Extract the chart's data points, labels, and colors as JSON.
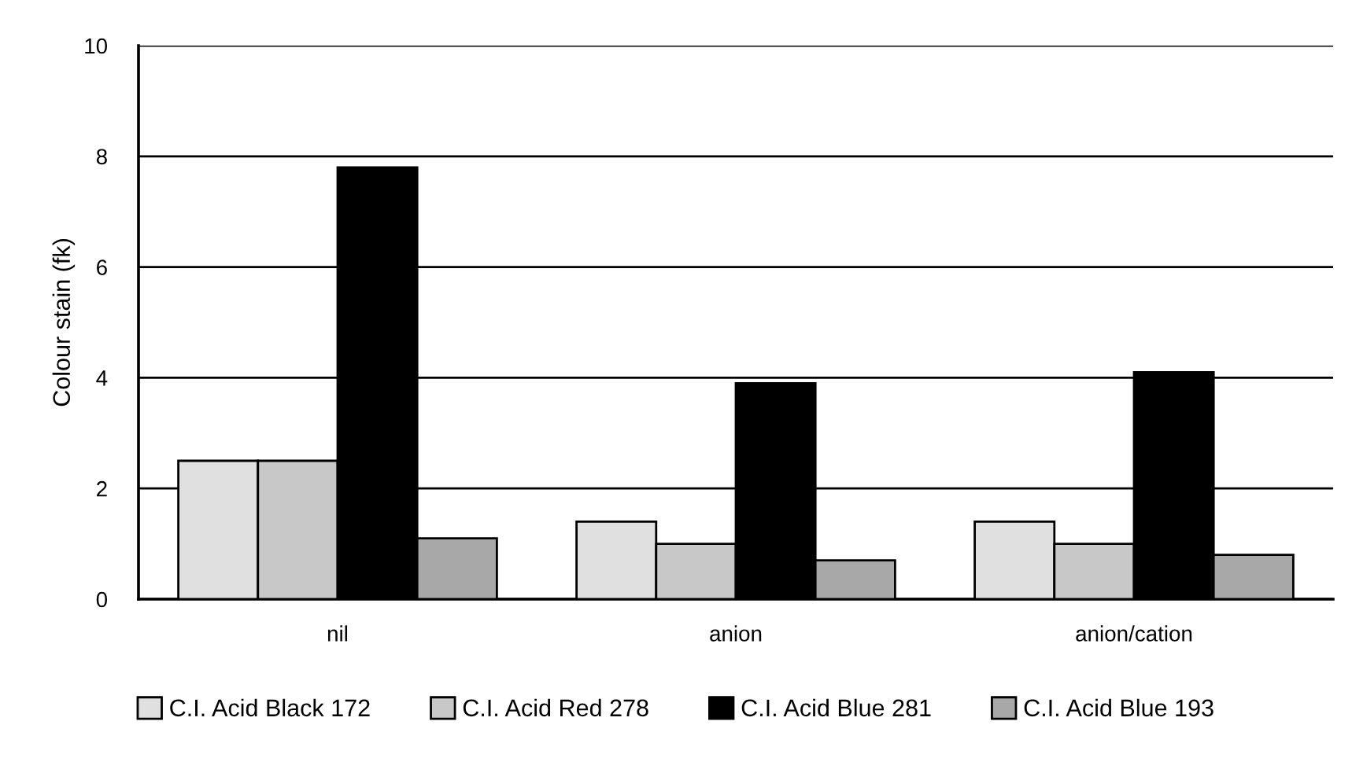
{
  "chart_data": {
    "type": "bar",
    "ylabel": "Colour stain (fk)",
    "categories": [
      "nil",
      "anion",
      "anion/cation"
    ],
    "series": [
      {
        "name": "C.I. Acid Black 172",
        "color": "#e0e0e0",
        "values": [
          2.5,
          1.4,
          1.4
        ]
      },
      {
        "name": "C.I. Acid Red 278",
        "color": "#c8c8c8",
        "values": [
          2.5,
          1.0,
          1.0
        ]
      },
      {
        "name": "C.I. Acid Blue 281",
        "color": "#000000",
        "values": [
          7.8,
          3.9,
          4.1
        ]
      },
      {
        "name": "C.I. Acid Blue 193",
        "color": "#a8a8a8",
        "values": [
          1.1,
          0.7,
          0.8
        ]
      }
    ],
    "ylim": [
      0,
      10
    ],
    "yticks": [
      0,
      2,
      4,
      6,
      8,
      10
    ],
    "grid": "y",
    "legend": "bottom"
  }
}
